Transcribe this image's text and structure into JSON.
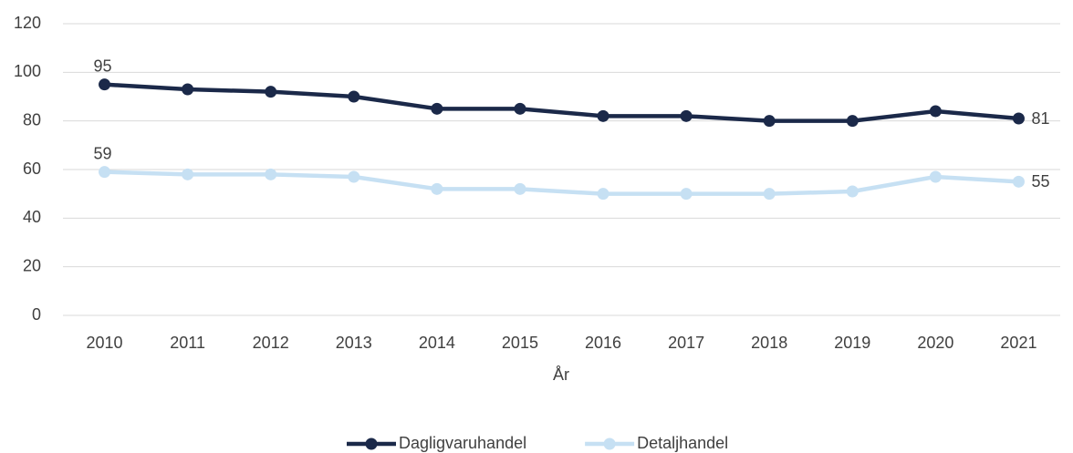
{
  "chart_data": {
    "type": "line",
    "x_label": "År",
    "categories": [
      "2010",
      "2011",
      "2012",
      "2013",
      "2014",
      "2015",
      "2016",
      "2017",
      "2018",
      "2019",
      "2020",
      "2021"
    ],
    "series": [
      {
        "name": "Dagligvaruhandel",
        "color": "#1b2949",
        "values": [
          95,
          93,
          92,
          90,
          85,
          85,
          82,
          82,
          80,
          80,
          84,
          81
        ]
      },
      {
        "name": "Detaljhandel",
        "color": "#c6e0f3",
        "values": [
          59,
          58,
          58,
          57,
          52,
          52,
          50,
          50,
          50,
          51,
          57,
          55
        ]
      }
    ],
    "ylim": [
      0,
      120
    ],
    "yticks": [
      0,
      20,
      40,
      60,
      80,
      100,
      120
    ],
    "grid": true,
    "data_labels": "ends",
    "legend": "bottom"
  }
}
